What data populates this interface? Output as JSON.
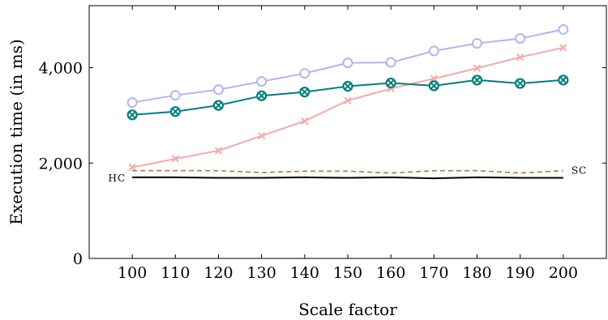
{
  "chart_data": {
    "type": "line",
    "xlabel": "Scale factor",
    "ylabel": "Execution time (in ms)",
    "x": [
      100,
      110,
      120,
      130,
      140,
      150,
      160,
      170,
      180,
      190,
      200
    ],
    "xticks": [
      "100",
      "110",
      "120",
      "130",
      "140",
      "150",
      "160",
      "170",
      "180",
      "190",
      "200"
    ],
    "xlim": [
      90,
      210
    ],
    "ylim": [
      0,
      5300
    ],
    "yticks": [
      0,
      2000,
      4000
    ],
    "ytick_labels": [
      "0",
      "2,000",
      "4,000"
    ],
    "grid": false,
    "legend": "none",
    "series": [
      {
        "color": "#b4b4f0",
        "marker": "circle",
        "line": "solid",
        "values": [
          3270,
          3420,
          3540,
          3710,
          3880,
          4100,
          4110,
          4350,
          4510,
          4610,
          4800
        ]
      },
      {
        "color": "#f4aaaa",
        "marker": "x",
        "line": "solid",
        "values": [
          1910,
          2090,
          2260,
          2570,
          2880,
          3310,
          3560,
          3770,
          3990,
          4220,
          4420
        ]
      },
      {
        "color": "#007f7a",
        "marker": "circle-x",
        "line": "solid",
        "values": [
          3010,
          3080,
          3210,
          3410,
          3490,
          3610,
          3680,
          3620,
          3740,
          3670,
          3740
        ]
      },
      {
        "annotation": "SC",
        "color": "#b07a3a",
        "marker": "none",
        "line": "dashed",
        "values": [
          1840,
          1840,
          1840,
          1800,
          1830,
          1830,
          1790,
          1840,
          1840,
          1790,
          1840
        ]
      },
      {
        "annotation": "HC",
        "color": "#000000",
        "marker": "none",
        "line": "solid",
        "values": [
          1700,
          1700,
          1690,
          1690,
          1700,
          1690,
          1700,
          1680,
          1700,
          1690,
          1690
        ]
      }
    ]
  }
}
